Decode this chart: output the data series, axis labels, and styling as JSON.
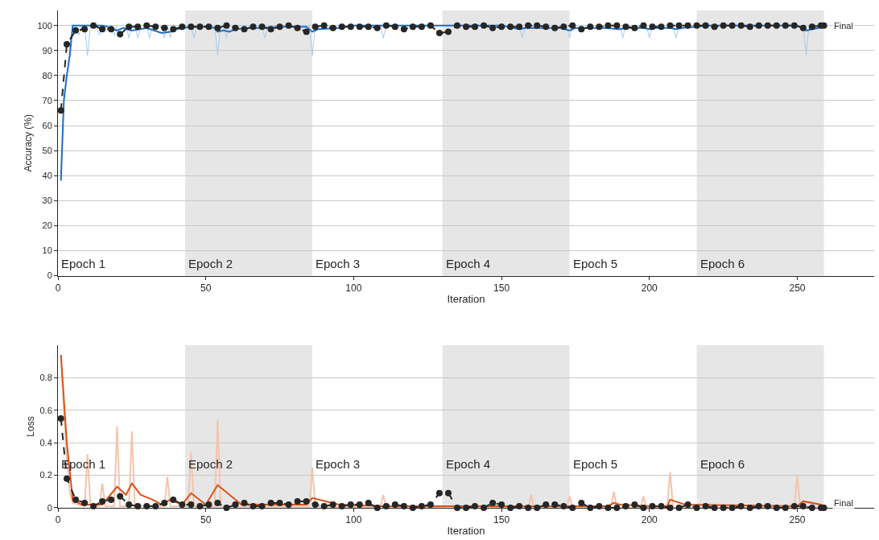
{
  "chart_data": [
    {
      "type": "line",
      "xlabel": "Iteration",
      "ylabel": "Accuracy (%)",
      "xlim": [
        0,
        276
      ],
      "ylim": [
        0,
        106
      ],
      "xticks": [
        0,
        50,
        100,
        150,
        200,
        250
      ],
      "yticks": [
        0,
        10,
        20,
        30,
        40,
        50,
        60,
        70,
        80,
        90,
        100
      ],
      "grid": "y",
      "bands": [
        {
          "axis": "x",
          "from": 43,
          "to": 86,
          "color": "#e6e6e6"
        },
        {
          "axis": "x",
          "from": 130,
          "to": 173,
          "color": "#e6e6e6"
        },
        {
          "axis": "x",
          "from": 216,
          "to": 259,
          "color": "#e6e6e6"
        }
      ],
      "annotations": [
        "Epoch 1",
        "Epoch 2",
        "Epoch 3",
        "Epoch 4",
        "Epoch 5",
        "Epoch 6",
        {
          "text": "Final",
          "x": 259,
          "y": 100
        }
      ],
      "series": [
        {
          "color": "#a9cbe9",
          "x": [
            1,
            2,
            3,
            4,
            5,
            6,
            7,
            8,
            9,
            10,
            11,
            13,
            14,
            15,
            18,
            19,
            20,
            23,
            24,
            25,
            26,
            27,
            28,
            30,
            31,
            32,
            35,
            36,
            37,
            38,
            39,
            40,
            45,
            46,
            47,
            53,
            54,
            55,
            56,
            57,
            58,
            69,
            70,
            71,
            85,
            86,
            87,
            109,
            110,
            111,
            156,
            157,
            158,
            172,
            173,
            174,
            190,
            191,
            192,
            199,
            200,
            201,
            208,
            209,
            210,
            252,
            253,
            254,
            259
          ],
          "values": [
            38,
            70,
            80,
            90,
            100,
            100,
            96,
            100,
            100,
            88,
            100,
            100,
            96,
            100,
            100,
            96,
            100,
            100,
            95,
            100,
            100,
            95,
            100,
            100,
            95,
            100,
            100,
            95,
            100,
            95,
            100,
            100,
            100,
            95,
            100,
            100,
            88,
            100,
            100,
            95,
            100,
            100,
            95,
            100,
            100,
            88,
            100,
            100,
            95,
            100,
            100,
            95,
            100,
            100,
            95,
            100,
            100,
            95,
            100,
            100,
            95,
            100,
            100,
            95,
            100,
            100,
            88,
            100,
            100
          ]
        },
        {
          "color": "#1f6fc3",
          "x": [
            1,
            2,
            3,
            4,
            5,
            10,
            15,
            18,
            20,
            22,
            25,
            30,
            35,
            38,
            40,
            45,
            50,
            53,
            54,
            56,
            58,
            60,
            65,
            70,
            75,
            80,
            84,
            86,
            88,
            95,
            100,
            110,
            150,
            156,
            158,
            170,
            173,
            175,
            185,
            190,
            192,
            198,
            200,
            202,
            207,
            209,
            211,
            220,
            250,
            252,
            253,
            259
          ],
          "values": [
            38,
            70,
            80,
            88,
            100,
            100,
            100,
            99,
            98,
            99,
            98,
            99,
            97,
            97.5,
            98.5,
            99.5,
            99.5,
            99,
            97.5,
            98,
            97.5,
            98.5,
            99,
            99,
            99.5,
            99.5,
            99.5,
            97.5,
            98.5,
            99,
            100,
            100,
            100,
            98.5,
            99,
            99,
            98,
            99,
            99,
            98.5,
            99,
            99,
            98.5,
            99,
            99,
            98.5,
            99,
            100,
            100,
            99,
            98,
            99.5
          ]
        },
        {
          "type": "line",
          "color": "#262626",
          "marker": "circle",
          "line_style": "dashed",
          "x": [
            1,
            3,
            6,
            9,
            12,
            15,
            18,
            21,
            24,
            27,
            30,
            33,
            36,
            39,
            42,
            45,
            48,
            51,
            54,
            57,
            60,
            63,
            66,
            69,
            72,
            75,
            78,
            81,
            84,
            87,
            90,
            93,
            96,
            99,
            102,
            105,
            108,
            111,
            114,
            117,
            120,
            123,
            126,
            129,
            132,
            135,
            138,
            141,
            144,
            147,
            150,
            153,
            156,
            159,
            162,
            165,
            168,
            171,
            174,
            177,
            180,
            183,
            186,
            189,
            192,
            195,
            198,
            201,
            204,
            207,
            210,
            213,
            216,
            219,
            222,
            225,
            228,
            231,
            234,
            237,
            240,
            243,
            246,
            249,
            252,
            255,
            258,
            259
          ],
          "values": [
            66,
            92.5,
            98,
            98.5,
            100,
            98.5,
            98.5,
            96.5,
            99.5,
            99.5,
            100,
            99.5,
            99,
            98.5,
            99.5,
            99.5,
            99.5,
            99.5,
            99,
            100,
            99,
            98.5,
            99.5,
            99.5,
            98.5,
            99.5,
            100,
            99,
            97.5,
            99.5,
            100,
            99,
            99.5,
            99.5,
            99.5,
            99.5,
            99,
            100,
            99.5,
            98.5,
            99.5,
            99.5,
            100,
            97,
            97.5,
            100,
            99.5,
            99.5,
            100,
            99,
            99.5,
            99.5,
            99.5,
            100,
            100,
            99.5,
            99,
            99.5,
            100,
            98.5,
            99.5,
            99.5,
            100,
            100,
            99.5,
            99,
            100,
            99.5,
            99.5,
            100,
            100,
            100,
            100,
            100,
            99.5,
            100,
            100,
            100,
            99.5,
            100,
            100,
            100,
            100,
            100,
            99,
            99.5,
            100,
            100
          ]
        }
      ]
    },
    {
      "type": "line",
      "xlabel": "Iteration",
      "ylabel": "Loss",
      "xlim": [
        0,
        276
      ],
      "ylim": [
        0,
        1
      ],
      "xticks": [
        0,
        50,
        100,
        150,
        200,
        250
      ],
      "yticks": [
        {
          "value": 0,
          "label": "0"
        },
        0.2,
        0.4,
        0.6,
        0.8
      ],
      "grid": "y",
      "bands": [
        {
          "axis": "x",
          "from": 43,
          "to": 86,
          "color": "#e6e6e6"
        },
        {
          "axis": "x",
          "from": 130,
          "to": 173,
          "color": "#e6e6e6"
        },
        {
          "axis": "x",
          "from": 216,
          "to": 259,
          "color": "#e6e6e6"
        }
      ],
      "annotations": [
        "Epoch 1",
        "Epoch 2",
        "Epoch 3",
        "Epoch 4",
        "Epoch 5",
        "Epoch 6",
        {
          "text": "Final",
          "x": 259,
          "y": 0
        }
      ],
      "series": [
        {
          "color": "#f4c4ad",
          "x": [
            1,
            2,
            3,
            4,
            5,
            9,
            10,
            11,
            14,
            15,
            16,
            19,
            20,
            21,
            24,
            25,
            26,
            36,
            37,
            38,
            44,
            45,
            46,
            53,
            54,
            55,
            85,
            86,
            87,
            109,
            110,
            111,
            159,
            160,
            161,
            172,
            173,
            174,
            187,
            188,
            189,
            197,
            198,
            199,
            206,
            207,
            208,
            249,
            250,
            251,
            259
          ],
          "values": [
            0.94,
            0.6,
            0.3,
            0.1,
            0.03,
            0.01,
            0.33,
            0.01,
            0.01,
            0.15,
            0.01,
            0.01,
            0.5,
            0.01,
            0.01,
            0.47,
            0.01,
            0.01,
            0.19,
            0.01,
            0.01,
            0.34,
            0.01,
            0.01,
            0.54,
            0.01,
            0.01,
            0.25,
            0.01,
            0,
            0.08,
            0,
            0,
            0.08,
            0,
            0,
            0.07,
            0,
            0,
            0.1,
            0,
            0,
            0.07,
            0,
            0,
            0.22,
            0,
            0,
            0.2,
            0,
            0
          ]
        },
        {
          "color": "#d95319",
          "x": [
            1,
            3,
            5,
            8,
            15,
            20,
            23,
            25,
            28,
            32,
            35,
            38,
            42,
            45,
            50,
            54,
            58,
            62,
            84,
            86,
            95,
            110,
            150,
            186,
            188,
            190,
            200,
            206,
            207,
            212,
            250,
            252,
            258,
            259
          ],
          "values": [
            0.94,
            0.4,
            0.05,
            0.02,
            0.02,
            0.13,
            0.08,
            0.15,
            0.08,
            0.05,
            0.02,
            0.05,
            0.02,
            0.09,
            0.02,
            0.14,
            0.08,
            0.02,
            0.02,
            0.06,
            0.02,
            0.01,
            0.01,
            0.01,
            0.03,
            0.02,
            0.01,
            0.01,
            0.05,
            0.02,
            0.01,
            0.04,
            0.02,
            0.01
          ]
        },
        {
          "type": "line",
          "color": "#262626",
          "marker": "circle",
          "line_style": "dashed",
          "x": [
            1,
            3,
            6,
            9,
            12,
            15,
            18,
            21,
            24,
            27,
            30,
            33,
            36,
            39,
            42,
            45,
            48,
            51,
            54,
            57,
            60,
            63,
            66,
            69,
            72,
            75,
            78,
            81,
            84,
            87,
            90,
            93,
            96,
            99,
            102,
            105,
            108,
            111,
            114,
            117,
            120,
            123,
            126,
            129,
            132,
            135,
            138,
            141,
            144,
            147,
            150,
            153,
            156,
            159,
            162,
            165,
            168,
            171,
            174,
            177,
            180,
            183,
            186,
            189,
            192,
            195,
            198,
            201,
            204,
            207,
            210,
            213,
            216,
            219,
            222,
            225,
            228,
            231,
            234,
            237,
            240,
            243,
            246,
            249,
            252,
            255,
            258,
            259
          ],
          "values": [
            0.55,
            0.18,
            0.05,
            0.03,
            0.01,
            0.04,
            0.05,
            0.07,
            0.02,
            0.01,
            0.01,
            0.01,
            0.03,
            0.05,
            0.02,
            0.02,
            0.01,
            0.02,
            0.03,
            0,
            0.02,
            0.03,
            0.01,
            0.01,
            0.03,
            0.03,
            0.02,
            0.04,
            0.04,
            0.02,
            0.01,
            0.02,
            0.01,
            0.02,
            0.02,
            0.03,
            0,
            0.01,
            0.02,
            0.01,
            0,
            0.01,
            0.02,
            0.09,
            0.09,
            0,
            0,
            0.01,
            0,
            0.03,
            0.02,
            0,
            0.01,
            0,
            0,
            0.02,
            0.02,
            0.01,
            0,
            0.03,
            0,
            0.01,
            0,
            0,
            0.01,
            0.02,
            0,
            0.01,
            0.01,
            0,
            0,
            0.02,
            0,
            0.01,
            0,
            0,
            0,
            0.01,
            0,
            0.01,
            0.01,
            0,
            0,
            0.01,
            0.01,
            0,
            0,
            0
          ]
        }
      ]
    }
  ]
}
